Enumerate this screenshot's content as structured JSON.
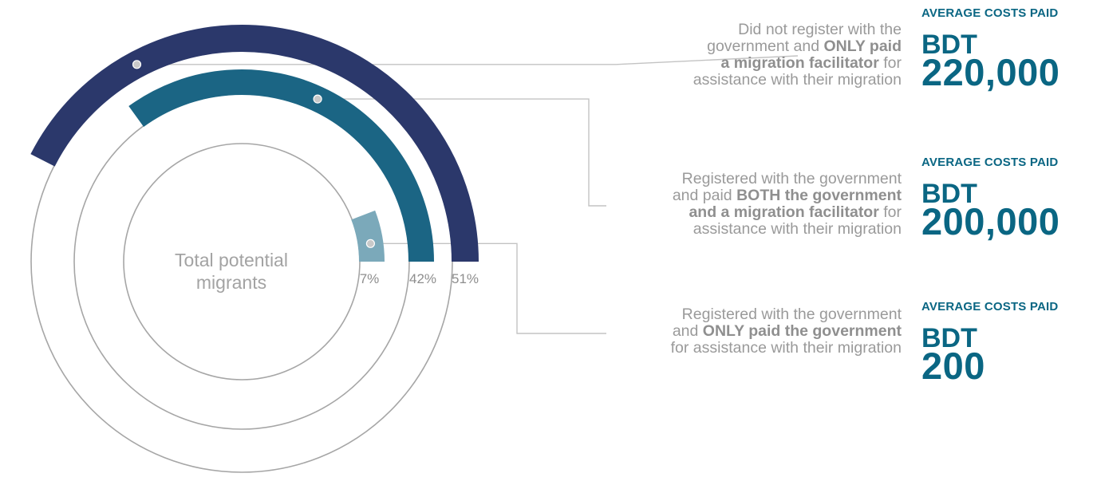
{
  "chart_data": {
    "type": "radial-bar",
    "center_label_line1": "Total potential",
    "center_label_line2": "migrants",
    "series": [
      {
        "name": "Did not register with the government and ONLY paid a migration facilitator",
        "value": 51,
        "value_label": "51%",
        "color": "#2b386b",
        "description": [
          {
            "text": "Did not register with the"
          },
          {
            "text": "government and ",
            "bold": "ONLY paid"
          },
          {
            "bold": "a migration facilitator",
            "text": " for"
          },
          {
            "text": "assistance with their migration"
          }
        ],
        "cost_heading": "AVERAGE COSTS PAID",
        "cost_currency": "BDT",
        "cost_value": "220,000"
      },
      {
        "name": "Registered with the government and paid BOTH the government and a migration facilitator",
        "value": 42,
        "value_label": "42%",
        "color": "#1b6584",
        "description": [
          {
            "text": "Registered with the government"
          },
          {
            "text": "and paid ",
            "bold": "BOTH the government"
          },
          {
            "bold": "and a migration facilitator",
            "text": " for"
          },
          {
            "text": "assistance with their migration"
          }
        ],
        "cost_heading": "AVERAGE COSTS PAID",
        "cost_currency": "BDT",
        "cost_value": "200,000"
      },
      {
        "name": "Registered with the government and ONLY paid the government",
        "value": 7,
        "value_label": "7%",
        "color": "#7ba9ba",
        "description": [
          {
            "text": "Registered with the government"
          },
          {
            "text": "and ",
            "bold": "ONLY paid the government"
          },
          {
            "text": "for assistance with their migration"
          }
        ],
        "cost_heading": "AVERAGE COSTS PAID",
        "cost_currency": "BDT",
        "cost_value": "200"
      }
    ],
    "track_color": "#a6a6a6",
    "connector_color": "#c3c3c3"
  }
}
